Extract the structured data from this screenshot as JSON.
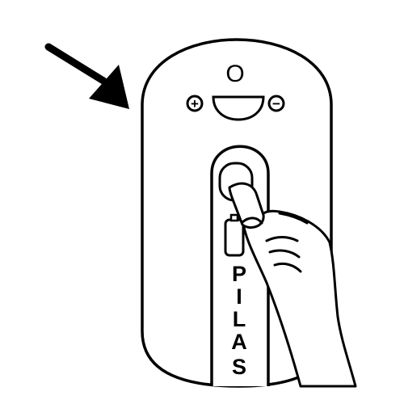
{
  "device": {
    "top_symbol": "O",
    "plus_symbol": "+",
    "minus_symbol": "−",
    "compartment_label_letters": [
      "P",
      "I",
      "L",
      "A",
      "S"
    ]
  },
  "icons": {
    "arrow": "arrow-icon",
    "hand": "hand-icon",
    "battery": "battery-icon"
  },
  "colors": {
    "stroke": "#000000",
    "fill": "#ffffff"
  }
}
